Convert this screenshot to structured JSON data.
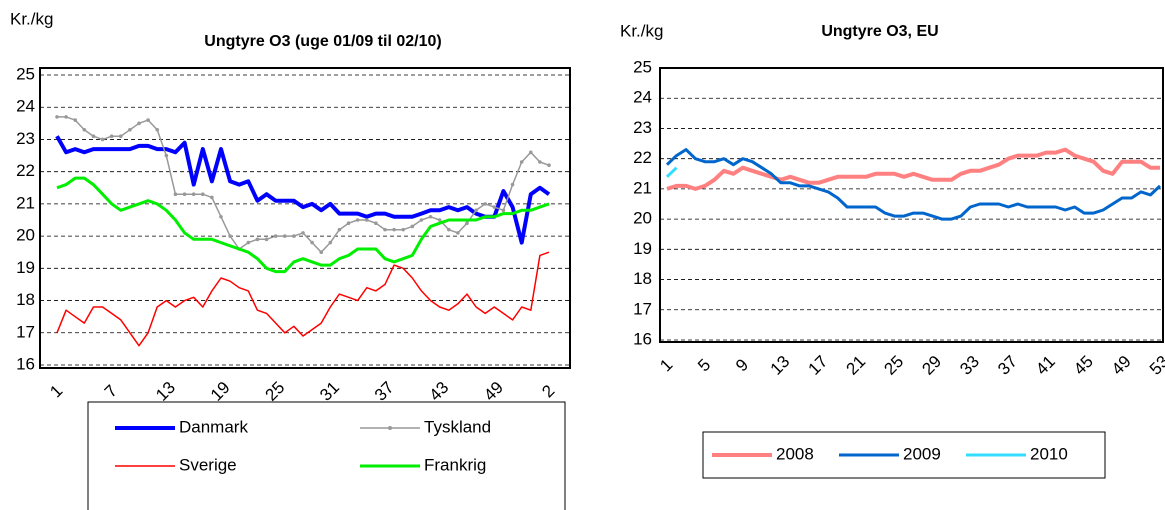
{
  "chart_data": [
    {
      "type": "line",
      "title": "Ungtyre O3 (uge 01/09 til 02/10)",
      "y_label": "Kr./kg",
      "categories": [
        "1",
        null,
        null,
        null,
        null,
        null,
        "7",
        null,
        null,
        null,
        null,
        null,
        "13",
        null,
        null,
        null,
        null,
        null,
        "19",
        null,
        null,
        null,
        null,
        null,
        "25",
        null,
        null,
        null,
        null,
        null,
        "31",
        null,
        null,
        null,
        null,
        null,
        "37",
        null,
        null,
        null,
        null,
        null,
        "43",
        null,
        null,
        null,
        null,
        null,
        "49",
        null,
        null,
        null,
        null,
        null,
        "2"
      ],
      "ylim": [
        16,
        25
      ],
      "yticks": [
        16,
        17,
        18,
        19,
        20,
        21,
        22,
        23,
        24,
        25
      ],
      "grid": true,
      "legend": "bottom",
      "series": [
        {
          "name": "Danmark",
          "color": "#0000ff",
          "width": 4,
          "values": [
            23.1,
            22.6,
            22.7,
            22.6,
            22.7,
            22.7,
            22.7,
            22.7,
            22.7,
            22.8,
            22.8,
            22.7,
            22.7,
            22.6,
            22.9,
            21.6,
            22.7,
            21.7,
            22.7,
            21.7,
            21.6,
            21.7,
            21.1,
            21.3,
            21.1,
            21.1,
            21.1,
            20.9,
            21.0,
            20.8,
            21.0,
            20.7,
            20.7,
            20.7,
            20.6,
            20.7,
            20.7,
            20.6,
            20.6,
            20.6,
            20.7,
            20.8,
            20.8,
            20.9,
            20.8,
            20.9,
            20.7,
            20.6,
            20.6,
            21.4,
            20.9,
            19.8,
            21.3,
            21.5,
            21.3
          ]
        },
        {
          "name": "Tyskland",
          "color": "#999999",
          "width": 1.5,
          "marker": true,
          "values": [
            23.7,
            23.7,
            23.6,
            23.3,
            23.1,
            23.0,
            23.1,
            23.1,
            23.3,
            23.5,
            23.6,
            23.3,
            22.5,
            21.3,
            21.3,
            21.3,
            21.3,
            21.2,
            20.6,
            20.0,
            19.6,
            19.8,
            19.9,
            19.9,
            20.0,
            20.0,
            20.0,
            20.1,
            19.8,
            19.5,
            19.8,
            20.2,
            20.4,
            20.5,
            20.5,
            20.4,
            20.2,
            20.2,
            20.2,
            20.3,
            20.5,
            20.6,
            20.5,
            20.2,
            20.1,
            20.4,
            20.8,
            21.0,
            20.9,
            20.8,
            21.6,
            22.3,
            22.6,
            22.3,
            22.2
          ]
        },
        {
          "name": "Sverige",
          "color": "#ff0000",
          "width": 1.5,
          "values": [
            17.0,
            17.7,
            17.5,
            17.3,
            17.8,
            17.8,
            17.6,
            17.4,
            17.0,
            16.6,
            17.0,
            17.8,
            18.0,
            17.8,
            18.0,
            18.1,
            17.8,
            18.3,
            18.7,
            18.6,
            18.4,
            18.3,
            17.7,
            17.6,
            17.3,
            17.0,
            17.2,
            16.9,
            17.1,
            17.3,
            17.8,
            18.2,
            18.1,
            18.0,
            18.4,
            18.3,
            18.5,
            19.1,
            19.0,
            18.7,
            18.3,
            18.0,
            17.8,
            17.7,
            17.9,
            18.2,
            17.8,
            17.6,
            17.8,
            17.6,
            17.4,
            17.8,
            17.7,
            19.4,
            19.5
          ]
        },
        {
          "name": "Frankrig",
          "color": "#00ee00",
          "width": 3,
          "values": [
            21.5,
            21.6,
            21.8,
            21.8,
            21.6,
            21.3,
            21.0,
            20.8,
            20.9,
            21.0,
            21.1,
            21.0,
            20.8,
            20.5,
            20.1,
            19.9,
            19.9,
            19.9,
            19.8,
            19.7,
            19.6,
            19.5,
            19.3,
            19.0,
            18.9,
            18.9,
            19.2,
            19.3,
            19.2,
            19.1,
            19.1,
            19.3,
            19.4,
            19.6,
            19.6,
            19.6,
            19.3,
            19.2,
            19.3,
            19.4,
            19.9,
            20.3,
            20.4,
            20.5,
            20.5,
            20.5,
            20.5,
            20.6,
            20.6,
            20.7,
            20.7,
            20.8,
            20.8,
            20.9,
            21.0
          ]
        }
      ]
    },
    {
      "type": "line",
      "title": "Ungtyre O3, EU",
      "y_label": "Kr./kg",
      "categories": [
        "1",
        null,
        null,
        null,
        "5",
        null,
        null,
        null,
        "9",
        null,
        null,
        null,
        "13",
        null,
        null,
        null,
        "17",
        null,
        null,
        null,
        "21",
        null,
        null,
        null,
        "25",
        null,
        null,
        null,
        "29",
        null,
        null,
        null,
        "33",
        null,
        null,
        null,
        "37",
        null,
        null,
        null,
        "41",
        null,
        null,
        null,
        "45",
        null,
        null,
        null,
        "49",
        null,
        null,
        null,
        "53"
      ],
      "ylim": [
        16,
        25
      ],
      "yticks": [
        16,
        17,
        18,
        19,
        20,
        21,
        22,
        23,
        24,
        25
      ],
      "grid": true,
      "legend": "bottom",
      "series": [
        {
          "name": "2008",
          "color": "#ff8080",
          "width": 4,
          "values": [
            21.0,
            21.1,
            21.1,
            21.0,
            21.1,
            21.3,
            21.6,
            21.5,
            21.7,
            21.6,
            21.5,
            21.4,
            21.3,
            21.4,
            21.3,
            21.2,
            21.2,
            21.3,
            21.4,
            21.4,
            21.4,
            21.4,
            21.5,
            21.5,
            21.5,
            21.4,
            21.5,
            21.4,
            21.3,
            21.3,
            21.3,
            21.5,
            21.6,
            21.6,
            21.7,
            21.8,
            22.0,
            22.1,
            22.1,
            22.1,
            22.2,
            22.2,
            22.3,
            22.1,
            22.0,
            21.9,
            21.6,
            21.5,
            21.9,
            21.9,
            21.9,
            21.7,
            21.7
          ]
        },
        {
          "name": "2009",
          "color": "#0066cc",
          "width": 3,
          "values": [
            21.8,
            22.1,
            22.3,
            22.0,
            21.9,
            21.9,
            22.0,
            21.8,
            22.0,
            21.9,
            21.7,
            21.5,
            21.2,
            21.2,
            21.1,
            21.1,
            21.0,
            20.9,
            20.7,
            20.4,
            20.4,
            20.4,
            20.4,
            20.2,
            20.1,
            20.1,
            20.2,
            20.2,
            20.1,
            20.0,
            20.0,
            20.1,
            20.4,
            20.5,
            20.5,
            20.5,
            20.4,
            20.5,
            20.4,
            20.4,
            20.4,
            20.4,
            20.3,
            20.4,
            20.2,
            20.2,
            20.3,
            20.5,
            20.7,
            20.7,
            20.9,
            20.8,
            21.1
          ]
        },
        {
          "name": "2010",
          "color": "#33ddff",
          "width": 3,
          "values": [
            21.4,
            21.7,
            null,
            null,
            null,
            null,
            null,
            null,
            null,
            null,
            null,
            null,
            null,
            null,
            null,
            null,
            null,
            null,
            null,
            null,
            null,
            null,
            null,
            null,
            null,
            null,
            null,
            null,
            null,
            null,
            null,
            null,
            null,
            null,
            null,
            null,
            null,
            null,
            null,
            null,
            null,
            null,
            null,
            null,
            null,
            null,
            null,
            null,
            null,
            null,
            null,
            null,
            null
          ]
        }
      ]
    }
  ]
}
